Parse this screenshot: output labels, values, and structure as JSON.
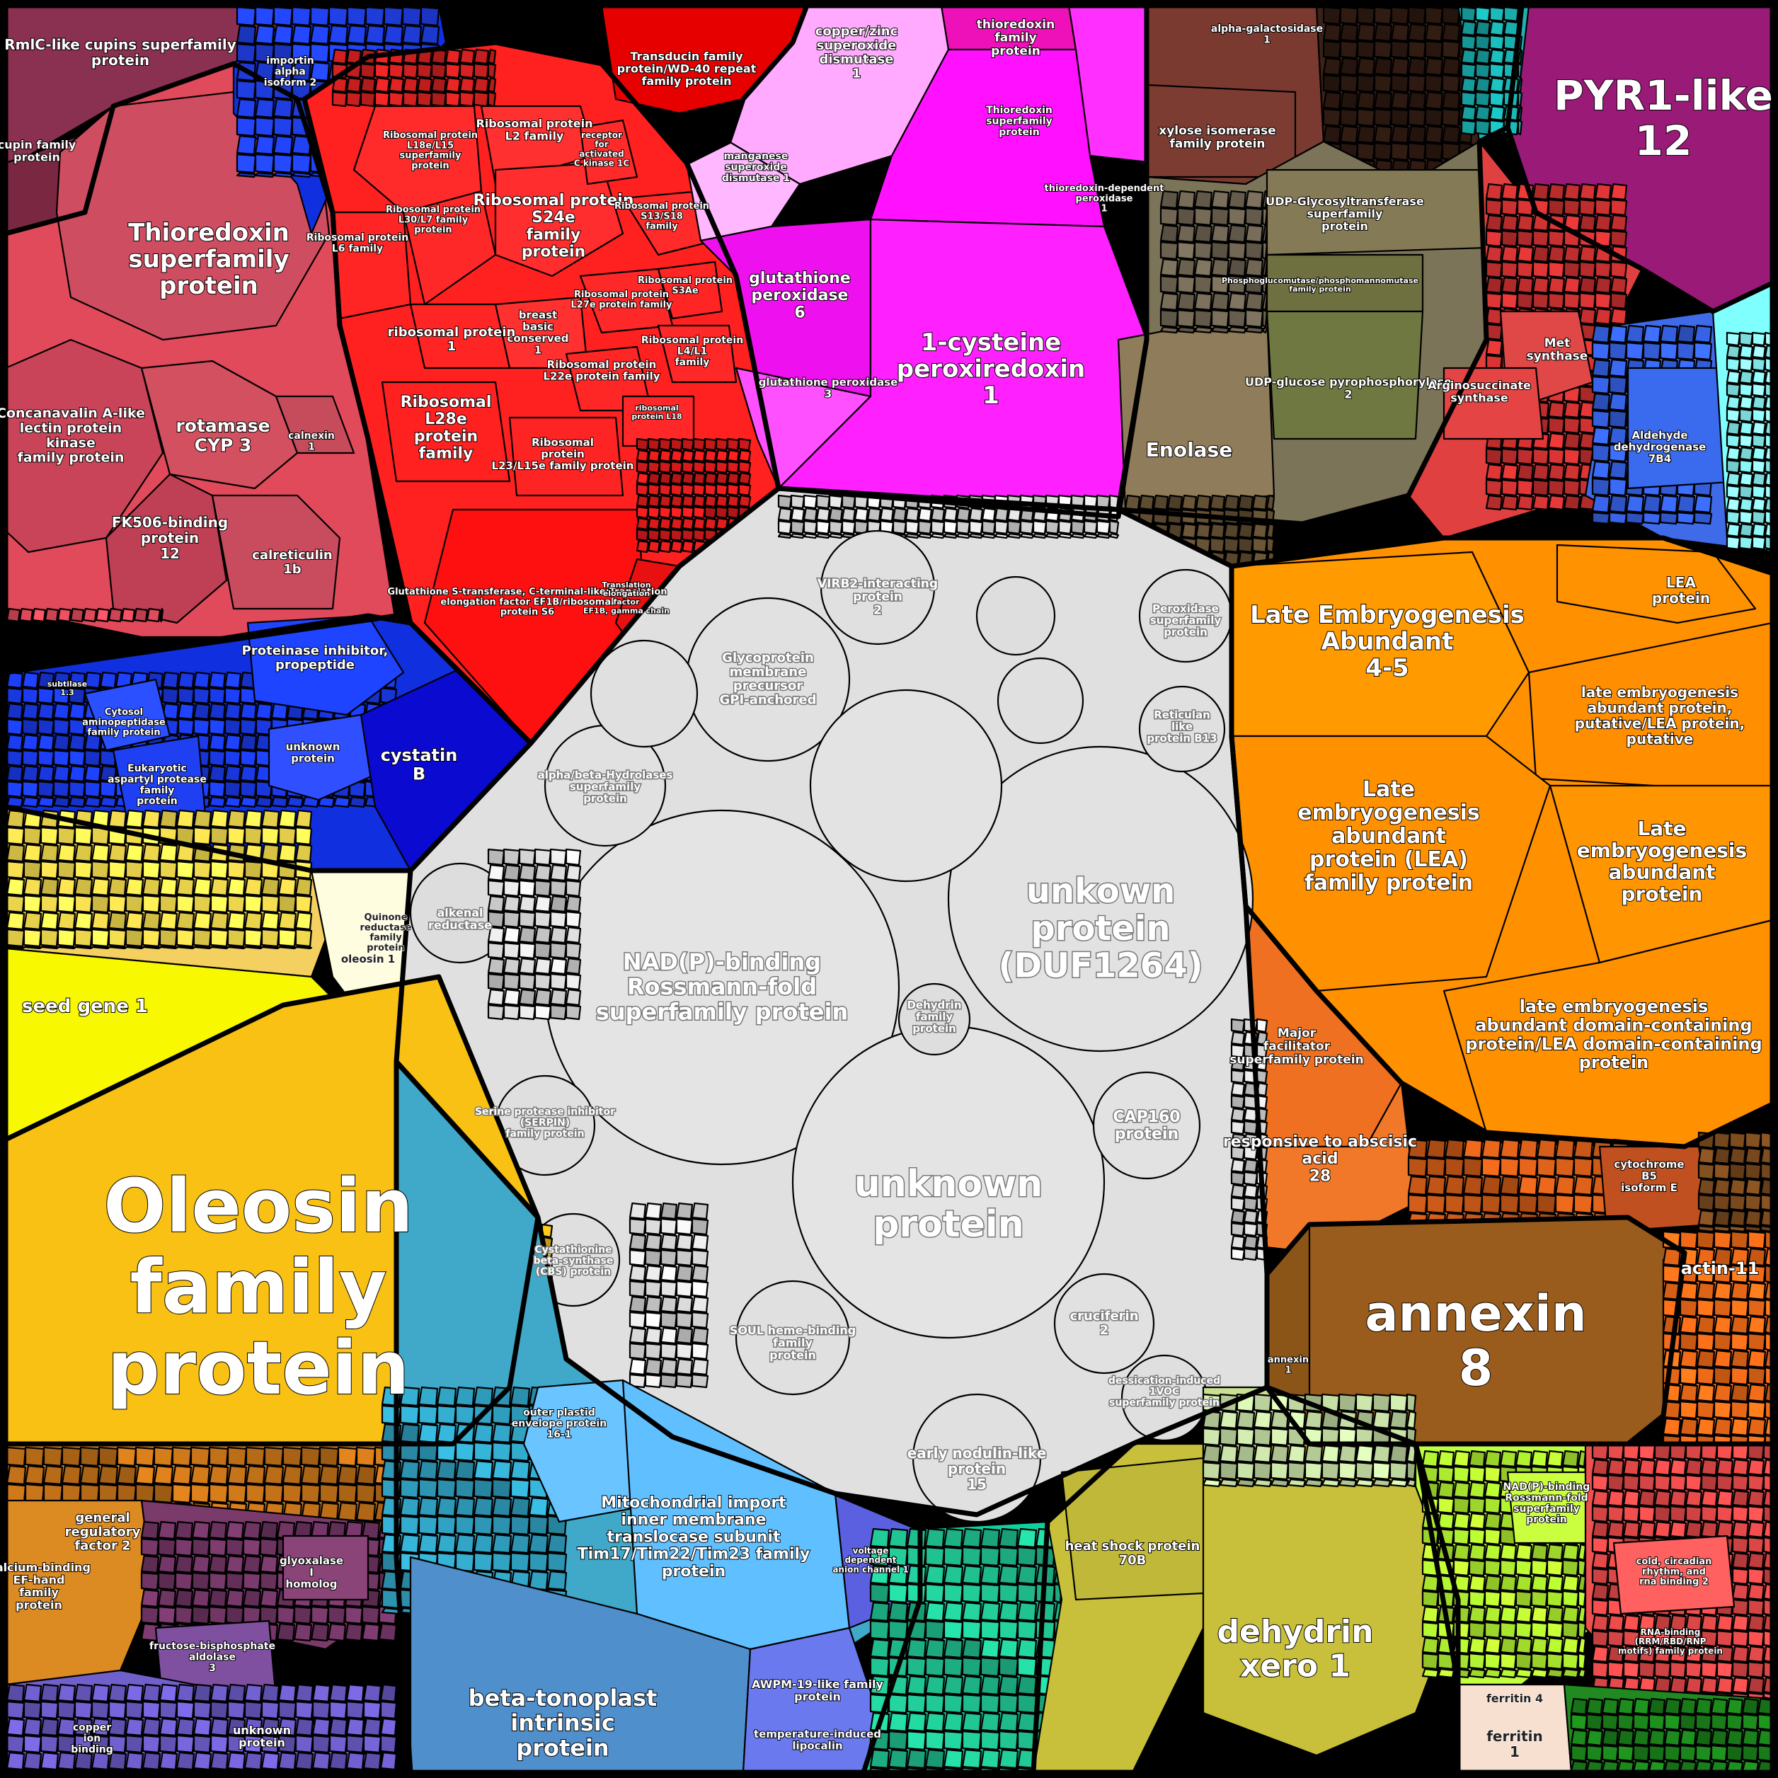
{
  "diagram": {
    "type": "voronoi-treemap",
    "colors": {
      "background": "#000000",
      "unknown_group": "#e0e0e0",
      "oleosin": "#f8c113",
      "seed_gene": "#f8f800",
      "lea": "#ff9000",
      "annexin": "#9a5c1c",
      "ribosomal": "#ff2020",
      "thioredoxin_pink": "#e04a5a",
      "blue_group": "#1030e0",
      "peroxiredoxin": "#ff20ff",
      "enolase": "#8a7a58",
      "dehydrin": "#c8c03a",
      "mito_import": "#60c0ff",
      "tonoplast": "#4f8fcc",
      "pyr1": "#9a1a78",
      "ferritin": "#f8e0d0",
      "cupin": "#8a3050",
      "green": "#208a20"
    },
    "labels": {
      "oleosin": "Oleosin family protein",
      "seed_gene": "seed gene 1",
      "oleosin1": "oleosin 1",
      "thioredoxin_sf": "Thioredoxin superfamily protein",
      "concanavalin": "Concanavalin A-like lectin protein kinase family protein",
      "rotamase": "rotamase CYP 3",
      "calnexin": "calnexin 1",
      "fk506": "FK506-binding protein 12",
      "calreticulin": "calreticulin 1b",
      "cupins": "RmlC-like cupins superfamily protein",
      "cupin_fam": "cupin family protein",
      "importin": "importin alpha isoform 2",
      "ribo_l2": "Ribosomal protein L2 family",
      "ribo_l18e": "Ribosomal protein L18e/L15 superfamily protein",
      "ribo_l6": "Ribosomal protein L6 family",
      "ribo_l30": "Ribosomal protein L30/L7 family protein",
      "ribo_s24e": "Ribosomal protein S24e family protein",
      "ribo_s13": "Ribosomal protein S13/S18 family",
      "ribo_s3ae": "Ribosomal protein S3Ae",
      "ribo_l27e": "Ribosomal protein L27e protein family",
      "breast_basic": "breast basic conserved 1",
      "ribosomal1": "ribosomal protein 1",
      "ribo_l4": "Ribosomal protein L4/L1 family",
      "ribo_l22e": "Ribosomal protein L22e protein family",
      "ribo_l28e": "Ribosomal L28e protein family",
      "ribo_l23": "Ribosomal protein L23/L15e family protein",
      "ribo_l18": "ribosomal protein L18",
      "receptor_ck": "receptor for activated C kinase 1C",
      "gst": "Glutathione S-transferase, C-terminal-like;Translation elongation factor EF1B/ribosomal protein S6",
      "ef1b": "Translation elongation factor EF1B, gamma chain",
      "transducin": "Transducin family protein/WD-40 repeat family protein",
      "cuzn_sod": "copper/zinc superoxide dismutase 1",
      "mn_sod": "manganese superoxide dismutase 1",
      "thioredoxin_fam": "thioredoxin family protein",
      "thioredoxin_sf2": "Thioredoxin superfamily protein",
      "thio_perox": "thioredoxin-dependent peroxidase 1",
      "gpx6": "glutathione peroxidase 6",
      "gpx3": "glutathione peroxidase 3",
      "perox1cys": "1-cysteine peroxiredoxin 1",
      "subtilase": "subtilase 1.3",
      "cytosol_amino": "Cytosol aminopeptidase family protein",
      "proteinase_inh": "Proteinase inhibitor, propeptide",
      "eukaryotic_asp": "Eukaryotic aspartyl protease family protein",
      "unknown_small": "unknown protein",
      "cystatin": "cystatin B",
      "galactosidase": "alpha-galactosidase 1",
      "xylose": "xylose isomerase family protein",
      "udp_glyco": "UDP-Glycosyltransferase superfamily protein",
      "phosphoglucomutase": "Phosphoglucomutase/phosphomannomutase family protein",
      "udp_glucose": "UDP-glucose pyrophosphorylase 2",
      "enolase": "Enolase",
      "pyr1": "PYR1-like 12",
      "met_synth": "Met synthase",
      "argino": "Arginosuccinate synthase",
      "aldehyde": "Aldehyde dehydrogenase 7B4",
      "lea45": "Late Embryogenesis Abundant 4-5",
      "lea_protein": "LEA protein",
      "lea_putative": "late embryogenesis abundant protein, putative/LEA protein, putative",
      "lea_family": "Late embryogenesis abundant protein (LEA) family protein",
      "lea_abundant": "Late embryogenesis abundant protein",
      "lea_domain": "late embryogenesis abundant domain-containing protein/LEA domain-containing protein",
      "major_facilitator": "Major facilitator superfamily protein",
      "aba28": "responsive to abscisic acid 28",
      "cytb5": "cytochrome B5 isoform E",
      "annexin8": "annexin 8",
      "annexin1": "annexin 1",
      "actin11": "actin-11",
      "nadp_rossmann": "NAD(P)-binding Rossmann-fold superfamily protein",
      "duf1264": "unkown protein (DUF1264)",
      "unknown_big": "unknown protein",
      "glycoprotein": "Glycoprotein membrane precursor GPI-anchored",
      "virb2": "VIRB2-interacting protein 2",
      "peroxidase_sf": "Peroxidase superfamily protein",
      "reticulan": "Reticulan like protein B13",
      "alpha_beta": "alpha/beta-Hydrolases superfamily protein",
      "alkenal": "alkenal reductase",
      "cap160": "CAP160 protein",
      "cruciferin": "cruciferin 2",
      "dehydrin_fam": "Dehydrin family protein",
      "early_nodulin": "early nodulin-like protein 15",
      "dessication": "dessication-induced 1VOC superfamily protein",
      "serpin": "Serine protease inhibitor (SERPIN) family protein",
      "cbs": "Cystathionine beta-synthase (CBS) protein",
      "soul": "SOUL heme-binding family protein",
      "outer_plastid": "outer plastid envelope protein 16-1",
      "mito_import": "Mitochondrial import inner membrane translocase subunit Tim17/Tim22/Tim23 family protein",
      "tonoplast": "beta-tonoplast intrinsic protein",
      "awpm": "AWPM-19-like family protein",
      "temp_lipocalin": "temperature-induced lipocalin",
      "voltage_anion": "voltage dependent anion channel 1",
      "heat_shock": "heat shock protein 70B",
      "dehydrin_xero": "dehydrin xero 1",
      "ferritin4": "ferritin 4",
      "ferritin1": "ferritin 1",
      "nadp_small": "NAD(P)-binding Rossmann-fold superfamily protein",
      "general_reg": "general regulatory factor 2",
      "calcium_ef": "Calcium-binding EF-hand family protein",
      "glyoxalase": "glyoxalase I homolog",
      "fructose": "fructose-bisphosphate aldolase 3",
      "copper_ion": "copper ion binding",
      "unknown_purple": "unknown protein",
      "cold_circadian": "cold, circadian rhythm, and rna binding 2",
      "rna_binding": "RNA-binding (RRM/RBD/RNP motifs) family protein",
      "quinone": "Quinone reductase family protein"
    }
  }
}
